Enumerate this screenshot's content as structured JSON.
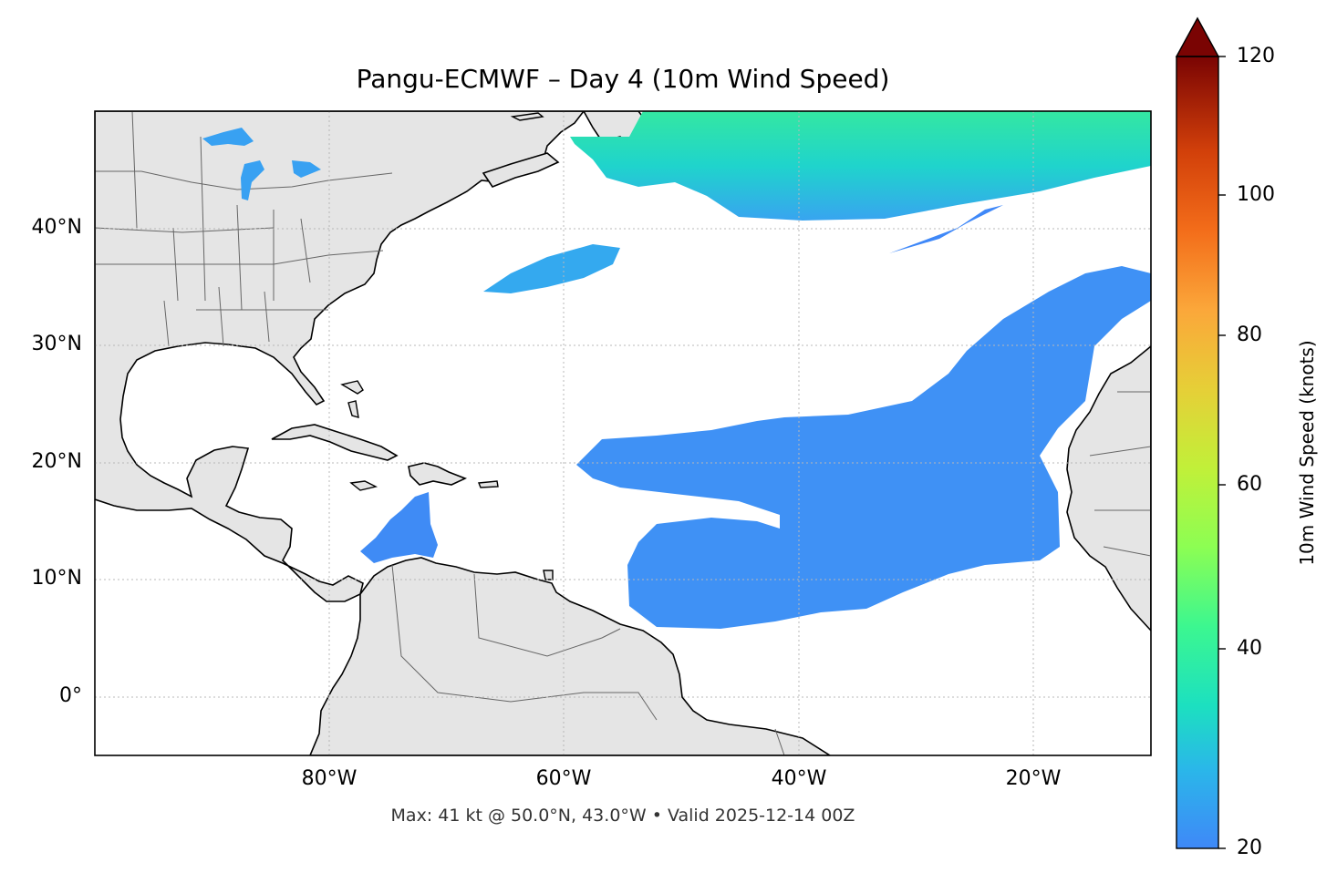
{
  "figure": {
    "title": "Pangu-ECMWF – Day 4 (10m Wind Speed)",
    "caption": "Max: 41 kt @ 50.0°N, 43.0°W • Valid 2025-12-14 00Z"
  },
  "map": {
    "projection": "PlateCarree",
    "lon_range": [
      -100,
      -10
    ],
    "lat_range": [
      -5,
      50
    ],
    "lat_ticks": [
      {
        "value": 40,
        "label": "40°N"
      },
      {
        "value": 30,
        "label": "30°N"
      },
      {
        "value": 20,
        "label": "20°N"
      },
      {
        "value": 10,
        "label": "10°N"
      },
      {
        "value": 0,
        "label": "0°"
      }
    ],
    "lon_ticks": [
      {
        "value": -80,
        "label": "80°W"
      },
      {
        "value": -60,
        "label": "60°W"
      },
      {
        "value": -40,
        "label": "40°W"
      },
      {
        "value": -20,
        "label": "20°W"
      }
    ],
    "gridlines": true,
    "land_color": "#e5e5e5",
    "ocean_color": "#ffffff",
    "coastline_color": "#000000",
    "border_color": "#666666"
  },
  "colorbar": {
    "label": "10m Wind Speed (knots)",
    "min": 20,
    "max": 120,
    "extend": "max",
    "colormap": "turbo",
    "ticks": [
      {
        "value": 120,
        "label": "120"
      },
      {
        "value": 100,
        "label": "100"
      },
      {
        "value": 80,
        "label": "80"
      },
      {
        "value": 60,
        "label": "60"
      },
      {
        "value": 40,
        "label": "40"
      },
      {
        "value": 20,
        "label": "20"
      }
    ]
  },
  "wind_max": {
    "speed_kt": 41,
    "lat": 50.0,
    "lon": -43.0
  }
}
